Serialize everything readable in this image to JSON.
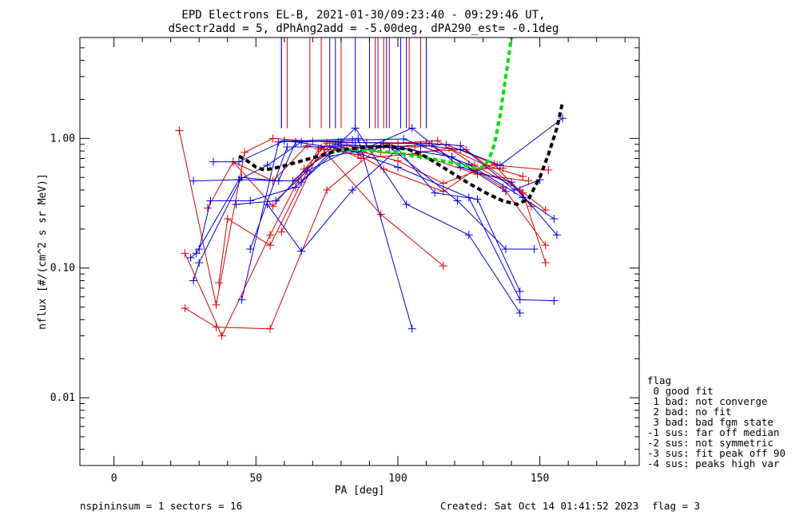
{
  "chart_data": {
    "type": "line",
    "title": "EPD Electrons EL-B, 2021-01-30/09:23:40 - 09:29:46 UT,",
    "subtitle": "dSectr2add = 5, dPhAng2add = -5.00deg, dPA290_est=  -0.1deg",
    "xlabel": "PA [deg]",
    "ylabel": "nflux [#/(cm^2 s sr MeV)]",
    "xlim": [
      -12,
      185
    ],
    "ylim": [
      0.003,
      6.0
    ],
    "yscale": "log",
    "x_ticks": [
      0,
      50,
      100,
      150
    ],
    "x_tick_labels": [
      "0",
      "50",
      "100",
      "150"
    ],
    "y_ticks": [
      0.01,
      0.1,
      1.0
    ],
    "y_tick_labels": [
      "0.01",
      "0.10",
      "1.00"
    ],
    "grid": false,
    "colors": {
      "red": "#dd0000",
      "blue": "#0000dd",
      "green": "#00e000",
      "black": "#000000"
    },
    "vertical_markers": [
      {
        "color": "red",
        "x": [
          59,
          61,
          69,
          73,
          80,
          92,
          95,
          104,
          108
        ]
      },
      {
        "color": "blue",
        "x": [
          59,
          76,
          78,
          85,
          90,
          96,
          101,
          103,
          110
        ]
      },
      {
        "color": "purple",
        "x": [
          93,
          97
        ]
      }
    ],
    "marker_range": [
      1.2,
      6.0
    ],
    "series": [
      {
        "color": "red",
        "points": [
          [
            23,
            1.15
          ],
          [
            36,
            0.052
          ],
          [
            46,
            0.78
          ],
          [
            56,
            1.0
          ],
          [
            70,
            0.95
          ],
          [
            85,
            0.93
          ],
          [
            100,
            0.92
          ],
          [
            114,
            0.96
          ],
          [
            127,
            0.62
          ],
          [
            143,
            0.4
          ],
          [
            152,
            0.28
          ]
        ]
      },
      {
        "color": "red",
        "points": [
          [
            25,
            0.13
          ],
          [
            38,
            0.03
          ],
          [
            55,
            0.18
          ],
          [
            67,
            0.58
          ],
          [
            80,
            0.88
          ],
          [
            95,
            0.88
          ],
          [
            106,
            0.86
          ],
          [
            117,
            0.9
          ],
          [
            135,
            0.62
          ],
          [
            153,
            0.57
          ]
        ]
      },
      {
        "color": "red",
        "points": [
          [
            25,
            0.049
          ],
          [
            36,
            0.035
          ],
          [
            55,
            0.034
          ],
          [
            75,
            0.4
          ],
          [
            95,
            0.92
          ],
          [
            108,
            0.79
          ],
          [
            124,
            0.82
          ],
          [
            144,
            0.38
          ],
          [
            152,
            0.11
          ]
        ]
      },
      {
        "color": "red",
        "points": [
          [
            33,
            0.29
          ],
          [
            42,
            0.66
          ],
          [
            56,
            0.47
          ],
          [
            68,
            0.88
          ],
          [
            86,
            0.75
          ],
          [
            95,
            0.58
          ],
          [
            116,
            0.39
          ],
          [
            127,
            0.57
          ],
          [
            137,
            0.42
          ],
          [
            152,
            0.15
          ]
        ]
      },
      {
        "color": "red",
        "points": [
          [
            37,
            0.077
          ],
          [
            40,
            0.24
          ],
          [
            55,
            0.15
          ],
          [
            72,
            0.83
          ],
          [
            88,
            0.78
          ],
          [
            100,
            0.67
          ],
          [
            116,
            0.45
          ],
          [
            134,
            0.63
          ],
          [
            147,
            0.3
          ]
        ]
      },
      {
        "color": "red",
        "points": [
          [
            42,
            0.66
          ],
          [
            56,
            0.3
          ],
          [
            75,
            0.92
          ],
          [
            89,
            0.93
          ],
          [
            110,
            0.92
          ],
          [
            126,
            0.58
          ],
          [
            137,
            0.59
          ]
        ]
      },
      {
        "color": "red",
        "points": [
          [
            65,
            0.48
          ],
          [
            76,
            0.88
          ],
          [
            87,
            0.7
          ],
          [
            105,
            0.76
          ],
          [
            118,
            0.84
          ],
          [
            131,
            0.62
          ],
          [
            144,
            0.51
          ]
        ]
      },
      {
        "color": "red",
        "points": [
          [
            59,
            0.19
          ],
          [
            73,
            0.85
          ],
          [
            94,
            0.26
          ],
          [
            116,
            0.104
          ]
        ]
      },
      {
        "color": "red",
        "points": [
          [
            82,
            0.88
          ],
          [
            94,
            0.78
          ],
          [
            108,
            0.74
          ],
          [
            128,
            0.53
          ],
          [
            146,
            0.47
          ]
        ]
      },
      {
        "color": "blue",
        "points": [
          [
            27,
            0.12
          ],
          [
            29,
            0.13
          ],
          [
            44,
            0.48
          ],
          [
            54,
            0.62
          ],
          [
            66,
            0.94
          ],
          [
            84,
            0.97
          ],
          [
            102,
            0.99
          ],
          [
            125,
            0.63
          ],
          [
            144,
            0.35
          ],
          [
            155,
            0.24
          ]
        ]
      },
      {
        "color": "blue",
        "points": [
          [
            28,
            0.08
          ],
          [
            30,
            0.11
          ],
          [
            45,
            0.5
          ],
          [
            58,
            0.47
          ],
          [
            64,
            0.94
          ],
          [
            86,
            0.79
          ],
          [
            105,
            1.2
          ],
          [
            122,
            0.6
          ],
          [
            140,
            0.46
          ],
          [
            156,
            0.18
          ]
        ]
      },
      {
        "color": "blue",
        "points": [
          [
            28,
            0.47
          ],
          [
            44,
            0.48
          ],
          [
            63,
            0.47
          ],
          [
            78,
            0.9
          ],
          [
            97,
            0.86
          ],
          [
            121,
            0.33
          ],
          [
            138,
            0.14
          ],
          [
            148,
            0.14
          ]
        ]
      },
      {
        "color": "blue",
        "points": [
          [
            30,
            0.14
          ],
          [
            34,
            0.33
          ],
          [
            48,
            0.33
          ],
          [
            64,
            0.42
          ],
          [
            80,
            0.94
          ],
          [
            85,
            1.2
          ],
          [
            103,
            0.31
          ],
          [
            125,
            0.18
          ],
          [
            143,
            0.045
          ]
        ]
      },
      {
        "color": "blue",
        "points": [
          [
            35,
            0.66
          ],
          [
            44,
            0.66
          ],
          [
            60,
            0.96
          ],
          [
            79,
            0.94
          ],
          [
            95,
            0.92
          ],
          [
            112,
            0.91
          ],
          [
            122,
            0.88
          ],
          [
            141,
            0.4
          ],
          [
            150,
            0.48
          ]
        ]
      },
      {
        "color": "blue",
        "points": [
          [
            43,
            0.31
          ],
          [
            57,
            0.33
          ],
          [
            68,
            0.56
          ],
          [
            85,
            0.86
          ],
          [
            98,
            0.86
          ],
          [
            119,
            0.72
          ],
          [
            138,
            0.39
          ]
        ]
      },
      {
        "color": "blue",
        "points": [
          [
            45,
            0.057
          ],
          [
            58,
            0.94
          ],
          [
            86,
            1.0
          ],
          [
            105,
            0.034
          ]
        ]
      },
      {
        "color": "blue",
        "points": [
          [
            48,
            0.14
          ],
          [
            61,
            0.86
          ],
          [
            80,
            0.86
          ],
          [
            100,
            0.6
          ],
          [
            125,
            0.35
          ],
          [
            143,
            0.057
          ],
          [
            155,
            0.056
          ]
        ]
      },
      {
        "color": "blue",
        "points": [
          [
            54,
            0.31
          ],
          [
            66,
            0.135
          ],
          [
            84,
            0.4
          ],
          [
            100,
            0.83
          ],
          [
            113,
            0.38
          ],
          [
            128,
            0.34
          ],
          [
            143,
            0.066
          ]
        ]
      },
      {
        "color": "blue",
        "points": [
          [
            66,
            0.46
          ],
          [
            76,
            0.73
          ],
          [
            94,
            0.85
          ],
          [
            108,
            0.89
          ],
          [
            122,
            0.82
          ],
          [
            136,
            0.62
          ],
          [
            158,
            1.43
          ]
        ]
      }
    ],
    "fits": [
      {
        "color": "green",
        "points": [
          [
            76,
            0.78
          ],
          [
            84,
            0.82
          ],
          [
            92,
            0.8
          ],
          [
            100,
            0.77
          ],
          [
            108,
            0.72
          ],
          [
            116,
            0.67
          ],
          [
            122,
            0.63
          ],
          [
            127,
            0.59
          ],
          [
            130,
            0.6
          ],
          [
            132,
            0.68
          ],
          [
            134,
            0.9
          ],
          [
            136,
            1.5
          ],
          [
            138,
            3.0
          ],
          [
            140,
            6.0
          ]
        ]
      },
      {
        "color": "black",
        "points": [
          [
            44,
            0.73
          ],
          [
            47,
            0.67
          ],
          [
            50,
            0.6
          ],
          [
            53,
            0.57
          ],
          [
            58,
            0.6
          ],
          [
            65,
            0.66
          ],
          [
            73,
            0.74
          ],
          [
            80,
            0.82
          ],
          [
            88,
            0.85
          ],
          [
            96,
            0.87
          ],
          [
            104,
            0.82
          ],
          [
            110,
            0.72
          ],
          [
            118,
            0.56
          ],
          [
            125,
            0.45
          ],
          [
            132,
            0.37
          ],
          [
            137,
            0.33
          ],
          [
            142,
            0.31
          ],
          [
            146,
            0.34
          ],
          [
            150,
            0.5
          ],
          [
            153,
            0.75
          ],
          [
            156,
            1.2
          ],
          [
            158,
            1.9
          ]
        ]
      }
    ],
    "legend": {
      "position": "right",
      "title": "flag",
      "entries": [
        " 0 good fit",
        " 1 bad: not converge",
        " 2 bad: no fit",
        " 3 bad: bad fgm state",
        "-1 sus: far off median",
        "-2 sus: not symmetric",
        "-3 sus: fit peak off 90",
        "-4 sus: peaks high var"
      ]
    },
    "footer": {
      "left": "nspininsum =  1  sectors = 16",
      "center": "Created: Sat Oct 14 01:41:52 2023",
      "right": "flag = 3"
    }
  }
}
